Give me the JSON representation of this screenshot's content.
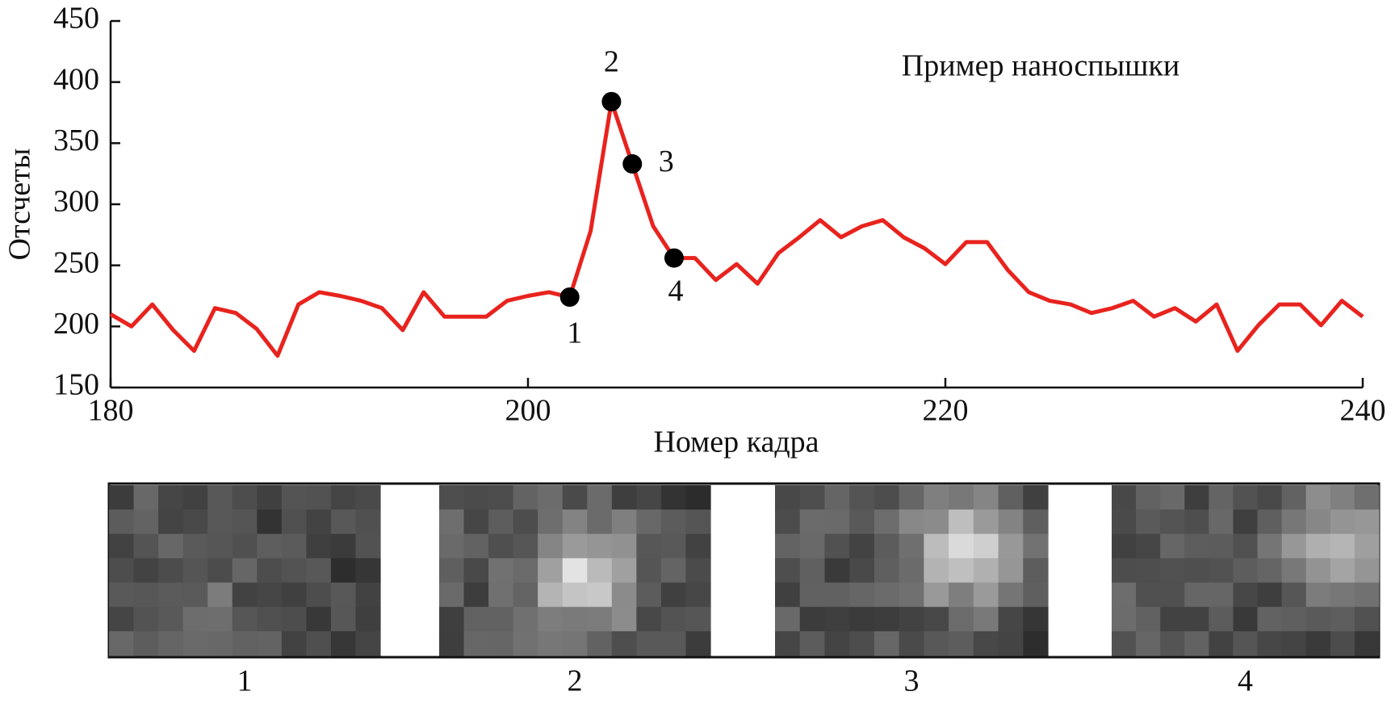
{
  "chart_data": {
    "type": "line",
    "annotation": "Пример наноспышки",
    "xlabel": "Номер кадра",
    "ylabel": "Отсчеты",
    "x": [
      180,
      181,
      182,
      183,
      184,
      185,
      186,
      187,
      188,
      189,
      190,
      191,
      192,
      193,
      194,
      195,
      196,
      197,
      198,
      199,
      200,
      201,
      202,
      203,
      204,
      205,
      206,
      207,
      208,
      209,
      210,
      211,
      212,
      213,
      214,
      215,
      216,
      217,
      218,
      219,
      220,
      221,
      222,
      223,
      224,
      225,
      226,
      227,
      228,
      229,
      230,
      231,
      232,
      233,
      234,
      235,
      236,
      237,
      238,
      239,
      240
    ],
    "series": [
      {
        "color": "#e8231e",
        "values": [
          210,
          200,
          218,
          197,
          180,
          215,
          211,
          198,
          176,
          218,
          228,
          225,
          221,
          215,
          197,
          228,
          208,
          208,
          208,
          221,
          225,
          228,
          224,
          278,
          384,
          333,
          282,
          256,
          256,
          238,
          251,
          235,
          260,
          273,
          287,
          273,
          282,
          287,
          273,
          264,
          251,
          269,
          269,
          246,
          228,
          221,
          218,
          211,
          215,
          221,
          208,
          215,
          204,
          218,
          180,
          201,
          218,
          218,
          201,
          221,
          208
        ]
      }
    ],
    "markers": [
      {
        "label": "1",
        "x": 202,
        "y": 224
      },
      {
        "label": "2",
        "x": 204,
        "y": 384
      },
      {
        "label": "3",
        "x": 205,
        "y": 333
      },
      {
        "label": "4",
        "x": 207,
        "y": 256
      }
    ],
    "marker_color": "#000000",
    "xlim": [
      180,
      240
    ],
    "xticks": [
      180,
      200,
      220,
      240
    ],
    "ylim": [
      150,
      450
    ],
    "yticks": [
      150,
      200,
      250,
      300,
      350,
      400,
      450
    ],
    "panels": [
      "1",
      "2",
      "3",
      "4"
    ]
  }
}
